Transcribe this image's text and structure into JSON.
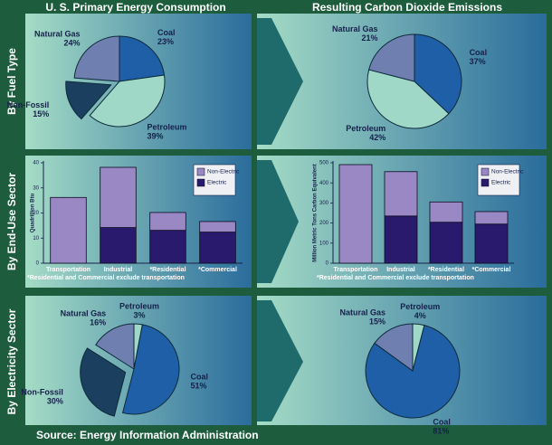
{
  "headers": {
    "left": "U. S. Primary Energy Consumption",
    "right": "Resulting Carbon Dioxide Emissions"
  },
  "rows": [
    "By Fuel Type",
    "By End-Use Sector",
    "By Electricity Sector"
  ],
  "source": "Source: Energy Information  Administration",
  "chart_data": [
    {
      "type": "pie",
      "categories": [
        "Coal",
        "Petroleum",
        "Non-Fossil",
        "Natural Gas"
      ],
      "values": [
        23,
        39,
        15,
        24
      ],
      "value_labels": [
        "23%",
        "39%",
        "15%",
        "24%"
      ],
      "colors": [
        "#1f5fa8",
        "#9fd8c6",
        "#1a3f5f",
        "#6f7fb0"
      ],
      "explode": [
        false,
        false,
        true,
        false
      ]
    },
    {
      "type": "pie",
      "categories": [
        "Coal",
        "Petroleum",
        "Natural Gas"
      ],
      "values": [
        37,
        42,
        21
      ],
      "value_labels": [
        "37%",
        "42%",
        "21%"
      ],
      "colors": [
        "#1f5fa8",
        "#9fd8c6",
        "#6f7fb0"
      ],
      "explode": [
        false,
        false,
        false
      ]
    },
    {
      "type": "bar",
      "stacked": true,
      "categories": [
        "Transportation",
        "Industrial",
        "*Residential",
        "*Commercial"
      ],
      "ylabel": "Quadrillion Btu",
      "ylim": [
        0,
        40
      ],
      "yticks": [
        0,
        10,
        20,
        30,
        40
      ],
      "legend": "upper right",
      "series": [
        {
          "name": "Non-Electric",
          "color": "#9988c4",
          "values": [
            26.2,
            24,
            7.1,
            4.2
          ]
        },
        {
          "name": "Electric",
          "color": "#2a1a6e",
          "values": [
            0,
            14.2,
            13.1,
            12.4
          ]
        }
      ],
      "note": "*Residential and Commercial exclude transportation"
    },
    {
      "type": "bar",
      "stacked": true,
      "categories": [
        "Transportation",
        "Industrial",
        "*Residential",
        "*Commercial"
      ],
      "ylabel": "Million Metric Tons Carbon Equivalent",
      "ylim": [
        0,
        500
      ],
      "yticks": [
        0,
        100,
        200,
        300,
        400,
        500
      ],
      "legend": "upper right",
      "series": [
        {
          "name": "Non-Electric",
          "color": "#9988c4",
          "values": [
            491,
            221,
            101,
            62
          ]
        },
        {
          "name": "Electric",
          "color": "#2a1a6e",
          "values": [
            0,
            235,
            204,
            195
          ]
        }
      ],
      "note": "*Residential and Commercial exclude transportation"
    },
    {
      "type": "pie",
      "categories": [
        "Petroleum",
        "Coal",
        "Non-Fossil",
        "Natural Gas"
      ],
      "values": [
        3,
        51,
        30,
        16
      ],
      "value_labels": [
        "3%",
        "51%",
        "30%",
        "16%"
      ],
      "colors": [
        "#9fd8c6",
        "#1f5fa8",
        "#1a3f5f",
        "#6f7fb0"
      ],
      "explode": [
        false,
        false,
        true,
        false
      ]
    },
    {
      "type": "pie",
      "categories": [
        "Petroleum",
        "Coal",
        "Natural Gas"
      ],
      "values": [
        4,
        81,
        15
      ],
      "value_labels": [
        "4%",
        "81%",
        "15%"
      ],
      "colors": [
        "#9fd8c6",
        "#1f5fa8",
        "#6f7fb0"
      ],
      "explode": [
        false,
        false,
        false
      ]
    }
  ]
}
